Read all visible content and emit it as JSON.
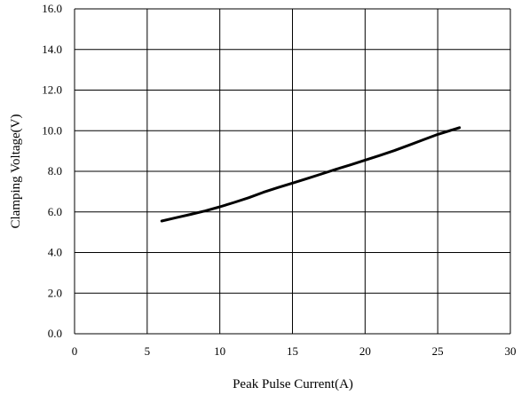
{
  "chart_data": {
    "type": "line",
    "title": "",
    "xlabel": "Peak Pulse Current(A)",
    "ylabel": "Clamping Voltage(V)",
    "xlim": [
      0,
      30
    ],
    "ylim": [
      0,
      16
    ],
    "xticks": [
      0,
      5,
      10,
      15,
      20,
      25,
      30
    ],
    "yticks": [
      0,
      2,
      4,
      6,
      8,
      10,
      12,
      14,
      16
    ],
    "xtick_labels": [
      "0",
      "5",
      "10",
      "15",
      "20",
      "25",
      "30"
    ],
    "ytick_labels": [
      "0.0",
      "2.0",
      "4.0",
      "6.0",
      "8.0",
      "10.0",
      "12.0",
      "14.0",
      "16.0"
    ],
    "grid": true,
    "legend": "none",
    "series": [
      {
        "color": "#000000",
        "x": [
          6,
          7,
          8,
          9,
          10,
          11,
          12,
          13,
          14,
          15,
          16,
          17,
          18,
          19,
          20,
          21,
          22,
          23,
          24,
          25,
          26.5
        ],
        "y": [
          5.55,
          5.72,
          5.88,
          6.05,
          6.25,
          6.47,
          6.7,
          6.97,
          7.2,
          7.42,
          7.64,
          7.87,
          8.1,
          8.32,
          8.55,
          8.78,
          9.02,
          9.28,
          9.55,
          9.82,
          10.15
        ]
      }
    ]
  }
}
